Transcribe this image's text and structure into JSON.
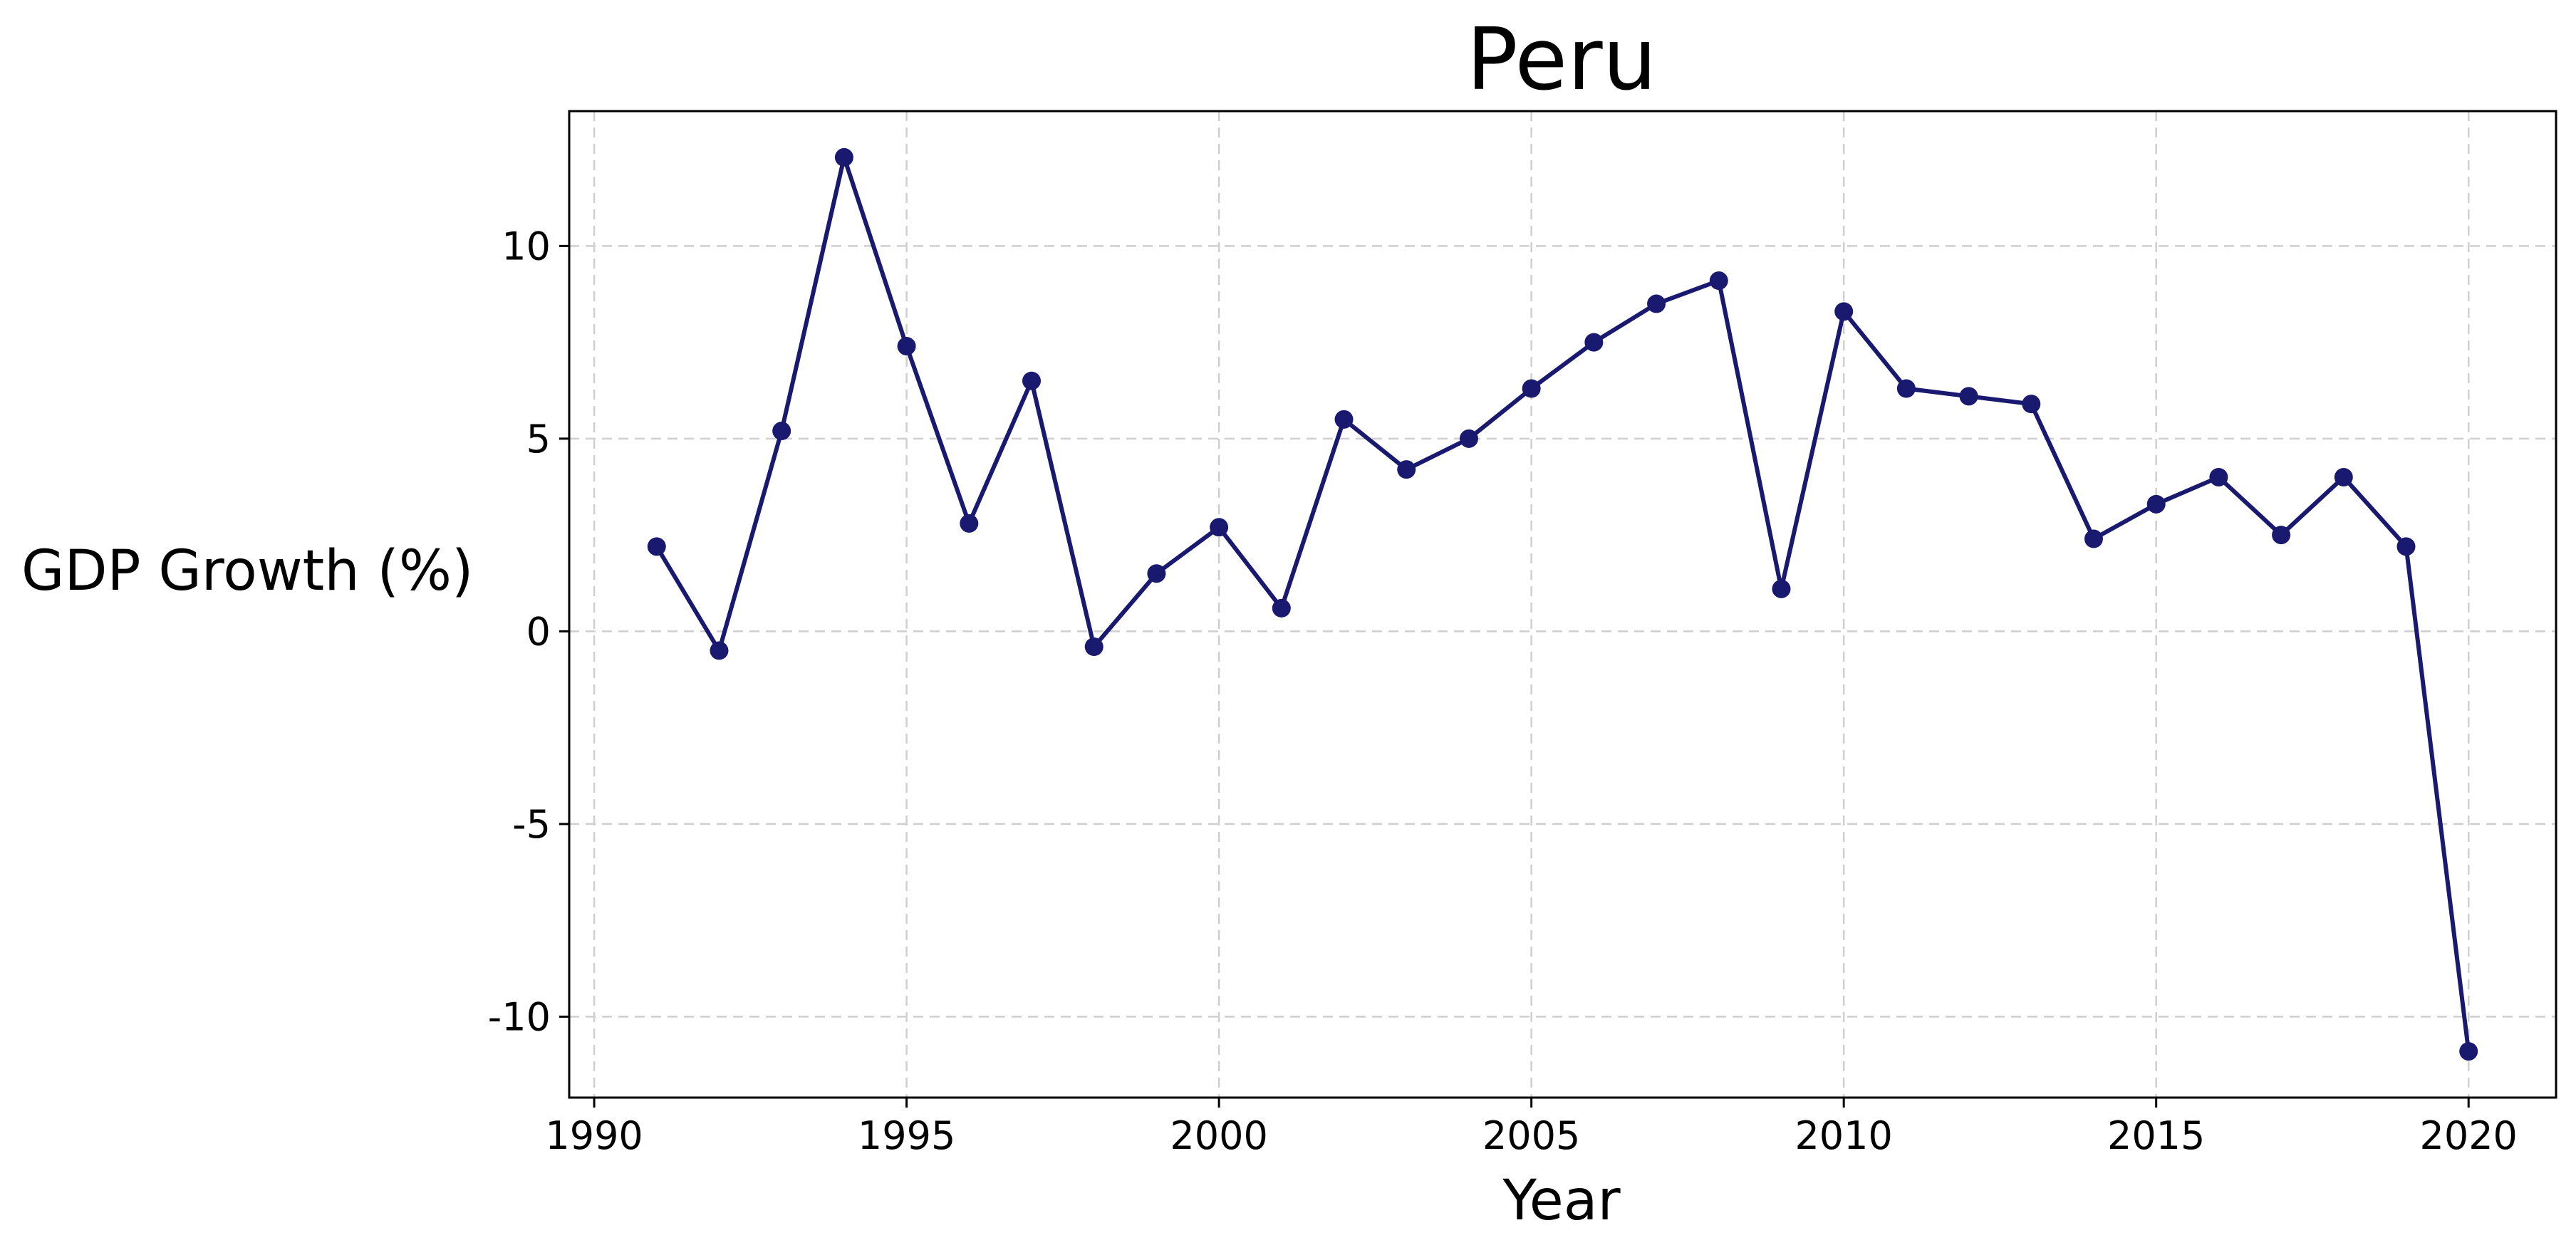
{
  "chart_data": {
    "type": "line",
    "title": "Peru",
    "xlabel": "Year",
    "ylabel": "GDP Growth (%)",
    "xlim": [
      1989.6,
      2021.4
    ],
    "ylim": [
      -12.1,
      13.5
    ],
    "x_ticks": [
      1990,
      1995,
      2000,
      2005,
      2010,
      2015,
      2020
    ],
    "x_tick_labels": [
      "1990",
      "1995",
      "2000",
      "2005",
      "2010",
      "2015",
      "2020"
    ],
    "y_ticks": [
      -10,
      -5,
      0,
      5,
      10
    ],
    "y_tick_labels": [
      "-10",
      "-5",
      "0",
      "5",
      "10"
    ],
    "grid": true,
    "legend": "none",
    "x": [
      1991,
      1992,
      1993,
      1994,
      1995,
      1996,
      1997,
      1998,
      1999,
      2000,
      2001,
      2002,
      2003,
      2004,
      2005,
      2006,
      2007,
      2008,
      2009,
      2010,
      2011,
      2012,
      2013,
      2014,
      2015,
      2016,
      2017,
      2018,
      2019,
      2020
    ],
    "series": [
      {
        "color": "#191970",
        "marker": "circle",
        "values": [
          2.2,
          -0.5,
          5.2,
          12.3,
          7.4,
          2.8,
          6.5,
          -0.4,
          1.5,
          2.7,
          0.6,
          5.5,
          4.2,
          5.0,
          6.3,
          7.5,
          8.5,
          9.1,
          1.1,
          8.3,
          6.3,
          6.1,
          5.9,
          2.4,
          3.3,
          4.0,
          2.5,
          4.0,
          2.2,
          -10.9
        ]
      }
    ]
  }
}
